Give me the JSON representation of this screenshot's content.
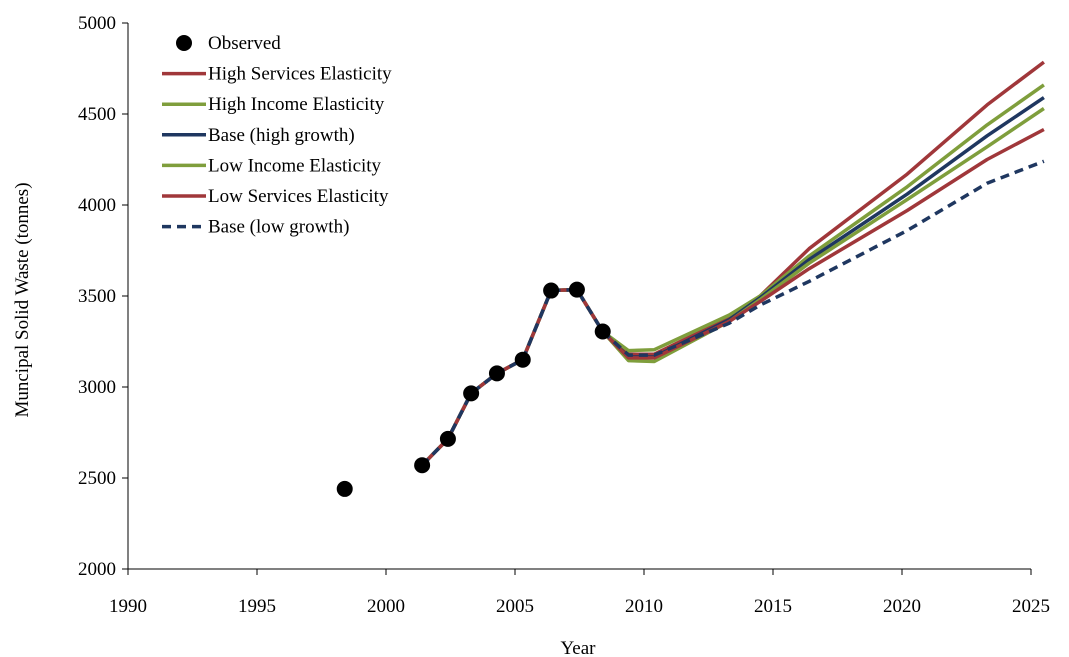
{
  "chart_data": {
    "type": "line",
    "title": "",
    "xlabel": "Year",
    "ylabel": "Muncipal Solid Waste (tonnes)",
    "xlim": [
      1990,
      2025
    ],
    "ylim": [
      2000,
      5000
    ],
    "x_ticks": [
      "1990",
      "1995",
      "2000",
      "2005",
      "2010",
      "2015",
      "2020",
      "2025"
    ],
    "y_ticks": [
      "2000",
      "2500",
      "3000",
      "3500",
      "4000",
      "4500",
      "5000"
    ],
    "grid": false,
    "legend_position": "top-left",
    "observed": {
      "name": "Observed",
      "color": "#000000",
      "points": [
        [
          1998.4,
          2440
        ],
        [
          2001.4,
          2570
        ],
        [
          2002.4,
          2715
        ],
        [
          2003.3,
          2965
        ],
        [
          2004.3,
          3075
        ],
        [
          2005.3,
          3150
        ],
        [
          2006.4,
          3530
        ],
        [
          2007.4,
          3535
        ],
        [
          2008.4,
          3305
        ]
      ]
    },
    "series": [
      {
        "name": "High Services Elasticity",
        "color": "#A0373A",
        "dash": false,
        "points": [
          [
            2001.4,
            2570
          ],
          [
            2002.4,
            2715
          ],
          [
            2003.3,
            2965
          ],
          [
            2004.3,
            3075
          ],
          [
            2005.3,
            3150
          ],
          [
            2006.4,
            3530
          ],
          [
            2007.4,
            3535
          ],
          [
            2008.4,
            3305
          ],
          [
            2009.4,
            3180
          ],
          [
            2010.4,
            3180
          ],
          [
            2013.3,
            3380
          ],
          [
            2014.5,
            3500
          ],
          [
            2016.4,
            3760
          ],
          [
            2020.2,
            4170
          ],
          [
            2023.3,
            4550
          ],
          [
            2025.5,
            4785
          ]
        ]
      },
      {
        "name": "High Income Elasticity",
        "color": "#7F9E3C",
        "dash": false,
        "points": [
          [
            2001.4,
            2570
          ],
          [
            2002.4,
            2715
          ],
          [
            2003.3,
            2965
          ],
          [
            2004.3,
            3075
          ],
          [
            2005.3,
            3150
          ],
          [
            2006.4,
            3530
          ],
          [
            2007.4,
            3535
          ],
          [
            2008.4,
            3305
          ],
          [
            2009.4,
            3200
          ],
          [
            2010.4,
            3205
          ],
          [
            2013.3,
            3395
          ],
          [
            2014.5,
            3500
          ],
          [
            2016.4,
            3720
          ],
          [
            2020.2,
            4100
          ],
          [
            2023.3,
            4440
          ],
          [
            2025.5,
            4660
          ]
        ]
      },
      {
        "name": "Base (high growth)",
        "color": "#1F3760",
        "dash": false,
        "points": [
          [
            2001.4,
            2570
          ],
          [
            2002.4,
            2715
          ],
          [
            2003.3,
            2965
          ],
          [
            2004.3,
            3075
          ],
          [
            2005.3,
            3150
          ],
          [
            2006.4,
            3530
          ],
          [
            2007.4,
            3535
          ],
          [
            2008.4,
            3305
          ],
          [
            2009.4,
            3165
          ],
          [
            2010.4,
            3165
          ],
          [
            2013.3,
            3370
          ],
          [
            2014.5,
            3490
          ],
          [
            2016.4,
            3700
          ],
          [
            2020.2,
            4060
          ],
          [
            2023.3,
            4380
          ],
          [
            2025.5,
            4590
          ]
        ]
      },
      {
        "name": "Low Income Elasticity",
        "color": "#7F9E3C",
        "dash": false,
        "points": [
          [
            2001.4,
            2570
          ],
          [
            2002.4,
            2715
          ],
          [
            2003.3,
            2965
          ],
          [
            2004.3,
            3075
          ],
          [
            2005.3,
            3150
          ],
          [
            2006.4,
            3530
          ],
          [
            2007.4,
            3535
          ],
          [
            2008.4,
            3305
          ],
          [
            2009.4,
            3145
          ],
          [
            2010.4,
            3140
          ],
          [
            2013.3,
            3360
          ],
          [
            2014.5,
            3480
          ],
          [
            2016.4,
            3680
          ],
          [
            2020.2,
            4030
          ],
          [
            2023.3,
            4320
          ],
          [
            2025.5,
            4530
          ]
        ]
      },
      {
        "name": "Low Services Elasticity",
        "color": "#A0373A",
        "dash": false,
        "points": [
          [
            2001.4,
            2570
          ],
          [
            2002.4,
            2715
          ],
          [
            2003.3,
            2965
          ],
          [
            2004.3,
            3075
          ],
          [
            2005.3,
            3150
          ],
          [
            2006.4,
            3530
          ],
          [
            2007.4,
            3535
          ],
          [
            2008.4,
            3305
          ],
          [
            2009.4,
            3160
          ],
          [
            2010.4,
            3160
          ],
          [
            2013.3,
            3360
          ],
          [
            2014.5,
            3470
          ],
          [
            2016.4,
            3650
          ],
          [
            2020.2,
            3970
          ],
          [
            2023.3,
            4250
          ],
          [
            2025.5,
            4415
          ]
        ]
      },
      {
        "name": "Base (low growth)",
        "color": "#1F3760",
        "dash": true,
        "points": [
          [
            2001.4,
            2570
          ],
          [
            2002.4,
            2715
          ],
          [
            2003.3,
            2965
          ],
          [
            2004.3,
            3075
          ],
          [
            2005.3,
            3150
          ],
          [
            2006.4,
            3530
          ],
          [
            2007.4,
            3535
          ],
          [
            2008.4,
            3305
          ],
          [
            2009.4,
            3175
          ],
          [
            2010.4,
            3175
          ],
          [
            2013.3,
            3350
          ],
          [
            2014.5,
            3450
          ],
          [
            2016.4,
            3580
          ],
          [
            2020.2,
            3860
          ],
          [
            2023.3,
            4120
          ],
          [
            2025.5,
            4240
          ]
        ]
      }
    ]
  }
}
